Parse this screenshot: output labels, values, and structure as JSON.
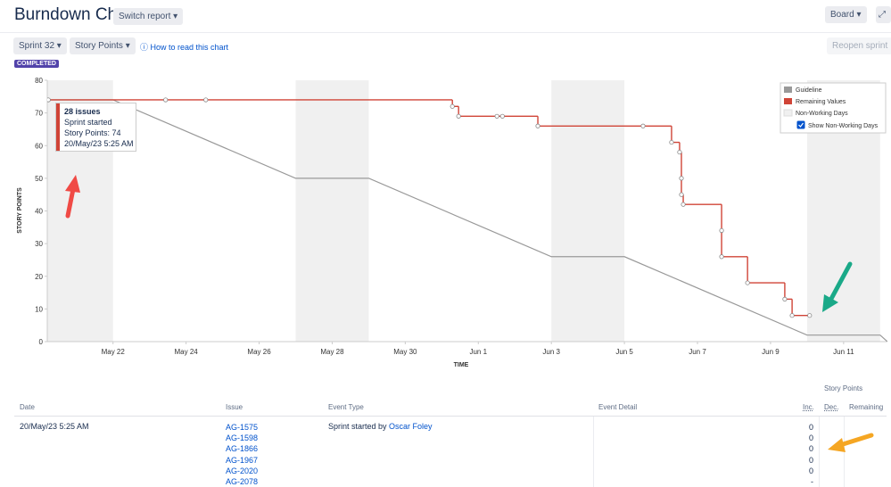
{
  "header": {
    "title": "Burndown Chart",
    "switch_report": "Switch report",
    "board": "Board"
  },
  "toolbar": {
    "sprint": "Sprint 32",
    "estimate": "Story Points",
    "help": "How to read this chart",
    "reopen": "Reopen sprint",
    "status": "COMPLETED"
  },
  "chart_data": {
    "type": "line",
    "x_label": "TIME",
    "y_label": "STORY POINTS",
    "xlim": [
      20.2,
      43.2
    ],
    "ylim": [
      0,
      80
    ],
    "xticks": [
      {
        "value": 22,
        "label": "May 22"
      },
      {
        "value": 24,
        "label": "May 24"
      },
      {
        "value": 26,
        "label": "May 26"
      },
      {
        "value": 28,
        "label": "May 28"
      },
      {
        "value": 30,
        "label": "May 30"
      },
      {
        "value": 32,
        "label": "Jun 1"
      },
      {
        "value": 34,
        "label": "Jun 3"
      },
      {
        "value": 36,
        "label": "Jun 5"
      },
      {
        "value": 38,
        "label": "Jun 7"
      },
      {
        "value": 40,
        "label": "Jun 9"
      },
      {
        "value": 42,
        "label": "Jun 11"
      }
    ],
    "yticks": [
      0,
      10,
      20,
      30,
      40,
      50,
      60,
      70,
      80
    ],
    "grid": false,
    "legend": "top-right",
    "non_working_label": "Non-Working Days",
    "non_working_color": "#f0f0f0",
    "show_non_working_label": "Show Non-Working Days",
    "show_non_working": true,
    "non_working_days": [
      [
        20,
        22
      ],
      [
        27,
        29
      ],
      [
        34,
        36
      ],
      [
        41,
        43
      ]
    ],
    "series": [
      {
        "name": "Guideline",
        "color": "#999999",
        "step": false,
        "x": [
          20.23,
          22,
          27,
          29,
          34,
          36,
          41,
          43,
          43.2
        ],
        "values": [
          74,
          74,
          50,
          50,
          26,
          26,
          2,
          2,
          0
        ]
      },
      {
        "name": "Remaining Values",
        "color": "#d04437",
        "step": true,
        "x": [
          20.23,
          23.44,
          24.54,
          31.29,
          31.46,
          32.51,
          32.66,
          33.63,
          36.51,
          37.29,
          37.51,
          37.56,
          37.56,
          37.61,
          38.66,
          38.66,
          39.37,
          40.39,
          40.59,
          41.07
        ],
        "values": [
          74,
          74,
          74,
          72,
          69,
          69,
          69,
          66,
          66,
          61,
          58,
          50,
          45,
          42,
          34,
          26,
          18,
          13,
          8,
          8
        ]
      }
    ],
    "tooltip": {
      "title": "28 issues",
      "event": "Sprint started",
      "points": "Story Points: 74",
      "date": "20/May/23 5:25 AM"
    }
  },
  "table": {
    "group_header": "Story Points",
    "columns": [
      "Date",
      "Issue",
      "Event Type",
      "Event Detail",
      "Inc.",
      "Dec.",
      "Remaining"
    ],
    "rows": [
      {
        "date": "20/May/23 5:25 AM",
        "issues": [
          "AG-1575",
          "AG-1598",
          "AG-1866",
          "AG-1967",
          "AG-2020",
          "AG-2078"
        ],
        "event_type": "Sprint started by",
        "event_user": "Oscar Foley",
        "inc": [
          0,
          0,
          0,
          0,
          0,
          "-"
        ]
      }
    ]
  }
}
